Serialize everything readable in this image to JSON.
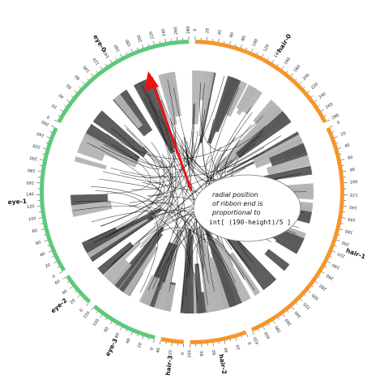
{
  "colors": {
    "eye": "#5ec97a",
    "hair": "#f5962a",
    "ribbon_dark": "#555555",
    "ribbon_light": "#b3b3b3",
    "link": "#111111",
    "arrow": "#ee1111"
  },
  "segments": [
    {
      "label": "hair-0",
      "group": "hair",
      "max": 280
    },
    {
      "label": "hair-1",
      "group": "hair",
      "max": 420
    },
    {
      "label": "hair-2",
      "group": "hair",
      "max": 100
    },
    {
      "label": "hair-3",
      "group": "hair",
      "max": 40
    },
    {
      "label": "eye-3",
      "group": "eye",
      "max": 120
    },
    {
      "label": "eye-2",
      "group": "eye",
      "max": 60
    },
    {
      "label": "eye-1",
      "group": "eye",
      "max": 260
    },
    {
      "label": "eye-0",
      "group": "eye",
      "max": 280
    }
  ],
  "annotation": {
    "line1": "radial position",
    "line2": "of ribbon end is",
    "line3": "proportional to",
    "formula": "int[ (190-height)/5 ]"
  }
}
